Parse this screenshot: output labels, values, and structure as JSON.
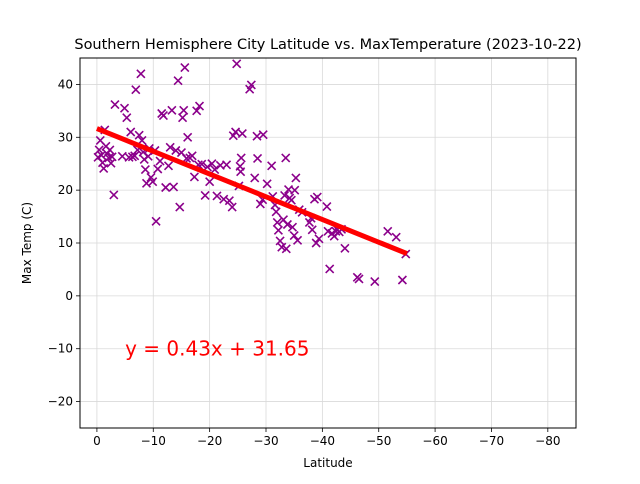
{
  "chart_data": {
    "type": "scatter",
    "title": "Southern Hemisphere City Latitude vs. MaxTemperature (2023-10-22)",
    "xlabel": "Latitude",
    "ylabel": "Max Temp (C)",
    "x_inverted": true,
    "xlim": [
      3.0,
      -85.0
    ],
    "ylim": [
      -25,
      45
    ],
    "xticks": [
      0,
      -10,
      -20,
      -30,
      -40,
      -50,
      -60,
      -70,
      -80
    ],
    "xtick_labels": [
      "0",
      "−10",
      "−20",
      "−30",
      "−40",
      "−50",
      "−60",
      "−70",
      "−80"
    ],
    "yticks": [
      -20,
      -10,
      0,
      10,
      20,
      30,
      40
    ],
    "ytick_labels": [
      "−20",
      "−10",
      "0",
      "10",
      "20",
      "30",
      "40"
    ],
    "grid": true,
    "marker": "x",
    "colors": {
      "points": "#8b008b",
      "regression": "#ff0000",
      "annotation": "#ff0000"
    },
    "regression": {
      "slope": 0.43,
      "intercept": 31.65,
      "x_range": [
        -55,
        0
      ]
    },
    "annotation": {
      "text": "y = 0.43x + 31.65",
      "x": -5,
      "y": -10
    },
    "points": [
      [
        -0.2,
        26.2
      ],
      [
        -0.4,
        27.6
      ],
      [
        -0.6,
        29.4
      ],
      [
        -0.8,
        26.6
      ],
      [
        -1.0,
        25.2
      ],
      [
        -1.2,
        24.1
      ],
      [
        -1.4,
        31.4
      ],
      [
        -1.6,
        28.3
      ],
      [
        -1.8,
        26.9
      ],
      [
        -2.1,
        26.1
      ],
      [
        -2.3,
        27.6
      ],
      [
        -2.5,
        25.1
      ],
      [
        -2.7,
        26.3
      ],
      [
        -3.0,
        19.1
      ],
      [
        -3.2,
        36.2
      ],
      [
        -4.5,
        26.4
      ],
      [
        -4.9,
        35.5
      ],
      [
        -5.3,
        33.7
      ],
      [
        -5.7,
        26.2
      ],
      [
        -6.0,
        31.0
      ],
      [
        -6.3,
        26.3
      ],
      [
        -6.7,
        26.5
      ],
      [
        -6.9,
        39.0
      ],
      [
        -7.2,
        27.6
      ],
      [
        -7.5,
        30.4
      ],
      [
        -7.8,
        42.0
      ],
      [
        -8.0,
        29.4
      ],
      [
        -8.2,
        27.2
      ],
      [
        -8.4,
        25.8
      ],
      [
        -8.6,
        23.9
      ],
      [
        -8.8,
        21.3
      ],
      [
        -9.1,
        26.4
      ],
      [
        -9.3,
        27.9
      ],
      [
        -9.6,
        22.4
      ],
      [
        -9.9,
        21.6
      ],
      [
        -10.3,
        27.5
      ],
      [
        -10.5,
        14.1
      ],
      [
        -10.8,
        24.0
      ],
      [
        -11.2,
        25.5
      ],
      [
        -11.5,
        34.5
      ],
      [
        -11.8,
        34.1
      ],
      [
        -12.2,
        20.5
      ],
      [
        -12.7,
        24.6
      ],
      [
        -13.0,
        28.1
      ],
      [
        -13.3,
        35.1
      ],
      [
        -13.6,
        20.6
      ],
      [
        -14.0,
        27.5
      ],
      [
        -14.4,
        40.7
      ],
      [
        -14.7,
        16.8
      ],
      [
        -15.0,
        27.1
      ],
      [
        -15.2,
        33.7
      ],
      [
        -15.4,
        35.1
      ],
      [
        -15.6,
        43.2
      ],
      [
        -15.9,
        26.0
      ],
      [
        -16.1,
        30.0
      ],
      [
        -16.5,
        26.1
      ],
      [
        -16.9,
        26.5
      ],
      [
        -17.3,
        22.5
      ],
      [
        -17.7,
        35.0
      ],
      [
        -18.0,
        24.8
      ],
      [
        -18.2,
        35.9
      ],
      [
        -18.6,
        24.9
      ],
      [
        -19.2,
        19.0
      ],
      [
        -19.6,
        24.4
      ],
      [
        -20.0,
        21.6
      ],
      [
        -20.4,
        25.0
      ],
      [
        -20.9,
        23.9
      ],
      [
        -21.3,
        18.9
      ],
      [
        -21.9,
        24.7
      ],
      [
        -22.5,
        18.3
      ],
      [
        -23.0,
        24.8
      ],
      [
        -23.5,
        18.0
      ],
      [
        -24.0,
        16.8
      ],
      [
        -24.2,
        30.3
      ],
      [
        -24.6,
        31.0
      ],
      [
        -24.8,
        43.9
      ],
      [
        -25.2,
        20.8
      ],
      [
        -25.4,
        24.5
      ],
      [
        -25.5,
        23.5
      ],
      [
        -25.6,
        26.1
      ],
      [
        -25.8,
        30.7
      ],
      [
        -27.1,
        39.1
      ],
      [
        -27.4,
        39.9
      ],
      [
        -28.0,
        22.3
      ],
      [
        -28.4,
        30.2
      ],
      [
        -28.5,
        26.0
      ],
      [
        -29.0,
        17.4
      ],
      [
        -29.4,
        18.2
      ],
      [
        -29.5,
        30.5
      ],
      [
        -30.2,
        21.2
      ],
      [
        -31.0,
        24.6
      ],
      [
        -31.2,
        18.8
      ],
      [
        -31.6,
        17.2
      ],
      [
        -31.8,
        15.9
      ],
      [
        -32.0,
        13.9
      ],
      [
        -32.2,
        12.4
      ],
      [
        -32.5,
        10.4
      ],
      [
        -32.8,
        9.2
      ],
      [
        -33.1,
        14.4
      ],
      [
        -33.3,
        19.0
      ],
      [
        -33.5,
        26.1
      ],
      [
        -33.6,
        8.9
      ],
      [
        -33.8,
        13.5
      ],
      [
        -34.0,
        20.1
      ],
      [
        -34.2,
        18.5
      ],
      [
        -34.5,
        18.1
      ],
      [
        -34.7,
        13.0
      ],
      [
        -35.0,
        11.4
      ],
      [
        -35.1,
        20.0
      ],
      [
        -35.3,
        22.3
      ],
      [
        -35.6,
        10.5
      ],
      [
        -35.9,
        16.3
      ],
      [
        -36.4,
        15.8
      ],
      [
        -37.7,
        13.9
      ],
      [
        -38.0,
        14.7
      ],
      [
        -38.2,
        12.5
      ],
      [
        -38.6,
        18.3
      ],
      [
        -38.9,
        10.0
      ],
      [
        -39.1,
        18.7
      ],
      [
        -39.4,
        10.8
      ],
      [
        -40.8,
        16.9
      ],
      [
        -41.0,
        12.2
      ],
      [
        -41.3,
        5.1
      ],
      [
        -41.7,
        11.8
      ],
      [
        -42.1,
        11.3
      ],
      [
        -42.4,
        12.2
      ],
      [
        -42.6,
        12.6
      ],
      [
        -43.0,
        12.1
      ],
      [
        -43.4,
        12.6
      ],
      [
        -44.0,
        9.0
      ],
      [
        -46.2,
        3.5
      ],
      [
        -46.5,
        3.2
      ],
      [
        -49.3,
        2.7
      ],
      [
        -51.6,
        12.2
      ],
      [
        -53.1,
        11.1
      ],
      [
        -54.2,
        3.0
      ],
      [
        -54.8,
        7.9
      ]
    ]
  }
}
